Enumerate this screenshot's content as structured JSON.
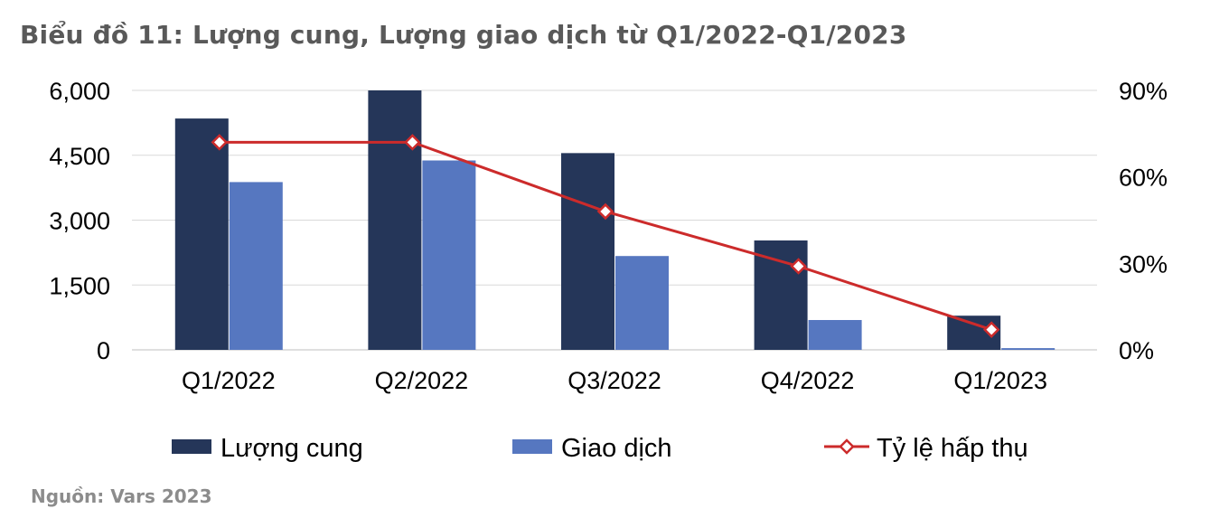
{
  "title": "Biểu đồ 11: Lượng cung, Lượng giao dịch từ Q1/2022-Q1/2023",
  "source": "Nguồn: Vars 2023",
  "chart_data": {
    "type": "bar",
    "categories": [
      "Q1/2022",
      "Q2/2022",
      "Q3/2022",
      "Q4/2022",
      "Q1/2023"
    ],
    "series": [
      {
        "name": "Lượng cung",
        "type": "bar",
        "axis": "left",
        "color": "#253659",
        "values": [
          5350,
          6000,
          4550,
          2530,
          790
        ]
      },
      {
        "name": "Giao dịch",
        "type": "bar",
        "axis": "left",
        "color": "#5677c0",
        "values": [
          3880,
          4380,
          2170,
          690,
          40
        ]
      },
      {
        "name": "Tỷ lệ hấp thụ",
        "type": "line",
        "axis": "right",
        "color": "#cc2b2b",
        "marker": "diamond-open",
        "values": [
          72,
          72,
          48,
          29,
          7
        ]
      }
    ],
    "y_left": {
      "ylim": [
        0,
        6000
      ],
      "ticks": [
        "6,000",
        "4,500",
        "3,000",
        "1,500",
        "0"
      ]
    },
    "y_right": {
      "ylim": [
        0,
        90
      ],
      "ticks": [
        "90%",
        "60%",
        "30%",
        "0%"
      ]
    },
    "grid": true,
    "legend": "bottom"
  }
}
